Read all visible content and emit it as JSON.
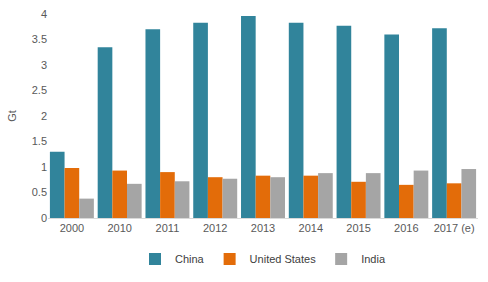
{
  "chart_data": {
    "type": "bar",
    "y_label": "Gt",
    "categories": [
      "2000",
      "2010",
      "2011",
      "2012",
      "2013",
      "2014",
      "2015",
      "2016",
      "2017 (e)"
    ],
    "series": [
      {
        "name": "China",
        "color": "#31849b",
        "values": [
          1.3,
          3.35,
          3.7,
          3.83,
          3.96,
          3.83,
          3.77,
          3.6,
          3.72
        ]
      },
      {
        "name": "United States",
        "color": "#e36c09",
        "values": [
          0.98,
          0.93,
          0.9,
          0.8,
          0.83,
          0.83,
          0.71,
          0.65,
          0.68
        ]
      },
      {
        "name": "India",
        "color": "#a5a5a5",
        "values": [
          0.38,
          0.67,
          0.72,
          0.77,
          0.8,
          0.88,
          0.88,
          0.93,
          0.96
        ]
      }
    ],
    "ylim": [
      0,
      4
    ],
    "yticks": [
      0,
      0.5,
      1,
      1.5,
      2,
      2.5,
      3,
      3.5,
      4
    ],
    "grid": false,
    "legend": "bottom"
  }
}
